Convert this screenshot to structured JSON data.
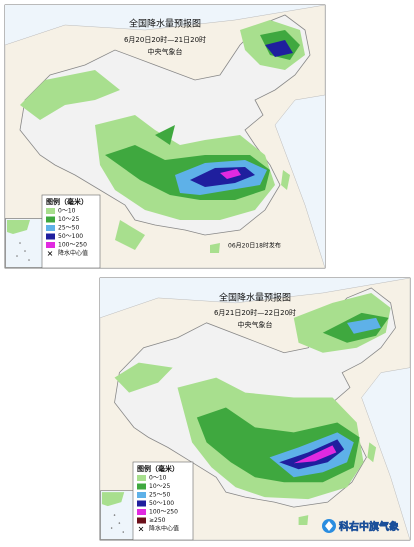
{
  "maps": [
    {
      "title": "全国降水量预报图",
      "period": "6月20日20时—21日20时",
      "issuer": "中央气象台",
      "legend": {
        "title": "图例（毫米）",
        "items": [
          "0～10",
          "10～25",
          "25～50",
          "50～100",
          "100～250"
        ],
        "center_mark": "降水中心值"
      },
      "release": "06月20日18时发布"
    },
    {
      "title": "全国降水量预报图",
      "period": "6月21日20时—22日20时",
      "issuer": "中央气象台",
      "legend": {
        "title": "图例（毫米）",
        "items": [
          "0～10",
          "10～25",
          "25～50",
          "50～100",
          "100～250",
          "≥250"
        ],
        "center_mark": "降水中心值"
      }
    }
  ],
  "watermark": "科右中旗气象"
}
